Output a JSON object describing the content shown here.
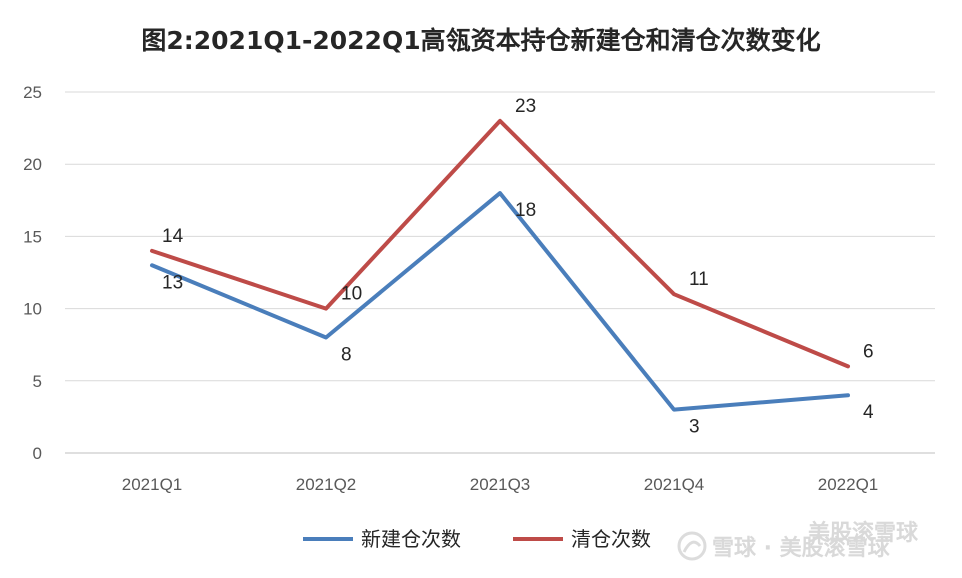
{
  "chart_data": {
    "type": "line",
    "title": "图2:2021Q1-2022Q1高瓴资本持仓新建仓和清仓次数变化",
    "categories": [
      "2021Q1",
      "2021Q2",
      "2021Q3",
      "2021Q4",
      "2022Q1"
    ],
    "series": [
      {
        "name": "新建仓次数",
        "values": [
          13,
          8,
          18,
          3,
          4
        ],
        "color": "#4a7ebb"
      },
      {
        "name": "清仓次数",
        "values": [
          14,
          10,
          23,
          11,
          6
        ],
        "color": "#be4b48"
      }
    ],
    "ylim": [
      0,
      25
    ],
    "yticks": [
      0,
      5,
      10,
      15,
      20,
      25
    ],
    "grid": true,
    "legend_position": "bottom"
  },
  "watermark": {
    "top_text": "美股滚雪球",
    "bottom_text": "雪球 · 美股滚雪球"
  }
}
